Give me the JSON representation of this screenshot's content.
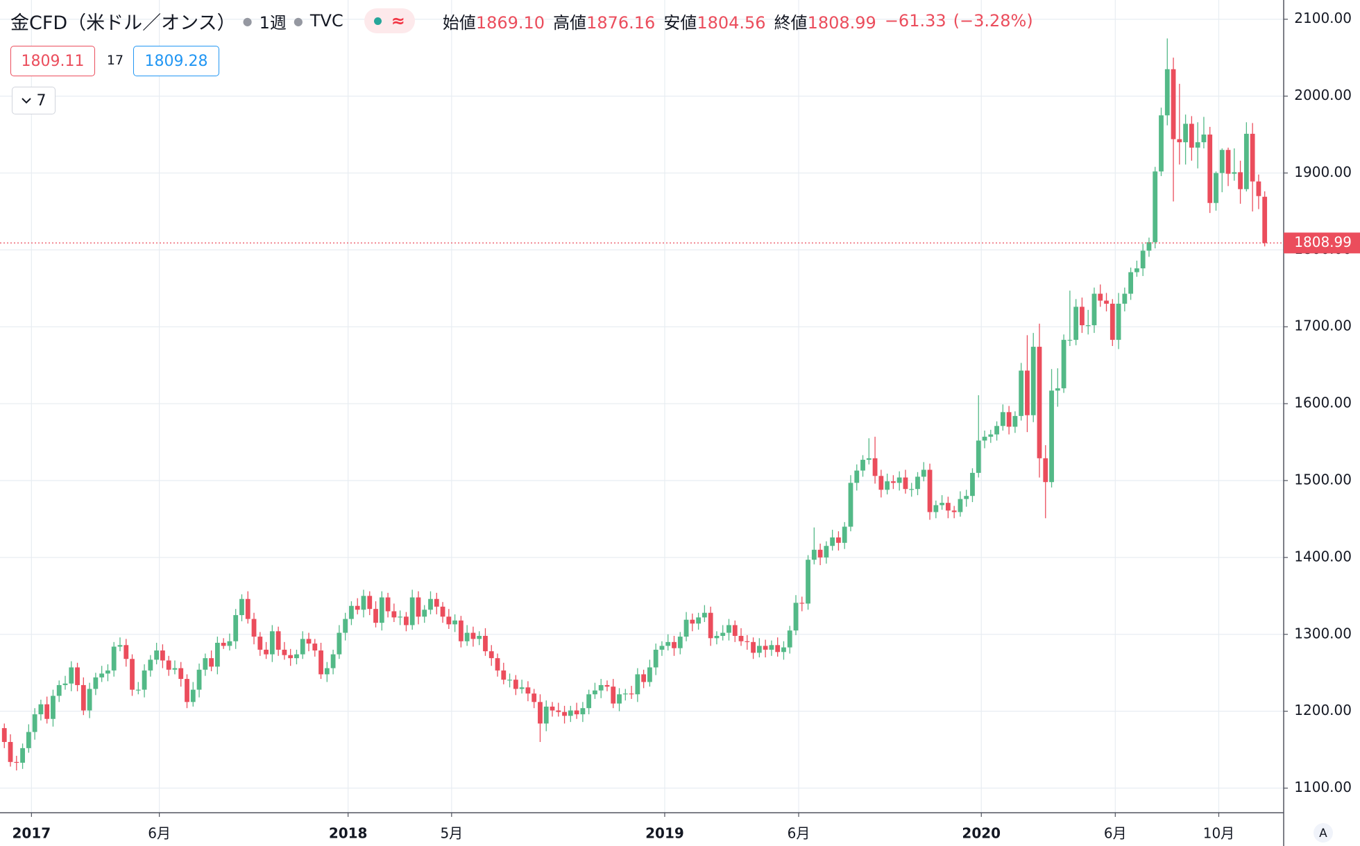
{
  "header": {
    "title": "金CFD（米ドル／オンス）",
    "interval": "1週",
    "source": "TVC",
    "status_icon": "≈",
    "ohlc": [
      {
        "label": "始値",
        "value": "1869.10"
      },
      {
        "label": "高値",
        "value": "1876.16"
      },
      {
        "label": "安値",
        "value": "1804.56"
      },
      {
        "label": "終値",
        "value": "1808.99"
      }
    ],
    "change": "−61.33",
    "change_pct": "(−3.28%)",
    "sell": "1809.11",
    "spread": "17",
    "buy": "1809.28",
    "indicators": "7",
    "axis_mode": "A"
  },
  "chart_data": {
    "type": "candlestick",
    "up_color": "#53b987",
    "down_color": "#eb4d5c",
    "grid": true,
    "ylim": [
      1068,
      2125
    ],
    "yticks": [
      {
        "value": 1100,
        "label": "1100.00"
      },
      {
        "value": 1200,
        "label": "1200.00"
      },
      {
        "value": 1300,
        "label": "1300.00"
      },
      {
        "value": 1400,
        "label": "1400.00"
      },
      {
        "value": 1500,
        "label": "1500.00"
      },
      {
        "value": 1600,
        "label": "1600.00"
      },
      {
        "value": 1700,
        "label": "1700.00"
      },
      {
        "value": 1800,
        "label": "1800.00"
      },
      {
        "value": 1900,
        "label": "1900.00"
      },
      {
        "value": 2000,
        "label": "2000.00"
      },
      {
        "value": 2100,
        "label": "2100.00"
      }
    ],
    "xticks": [
      {
        "value": 4,
        "label": "2017"
      },
      {
        "value": 25,
        "label": "6月"
      },
      {
        "value": 56,
        "label": "2018"
      },
      {
        "value": 73,
        "label": "5月"
      },
      {
        "value": 108,
        "label": "2019"
      },
      {
        "value": 130,
        "label": "6月"
      },
      {
        "value": 160,
        "label": "2020"
      },
      {
        "value": 182,
        "label": "6月"
      },
      {
        "value": 199,
        "label": "10月"
      }
    ],
    "open": [
      1178,
      1160,
      1134,
      1133,
      1152,
      1173,
      1196,
      1209,
      1190,
      1220,
      1234,
      1236,
      1257,
      1234,
      1201,
      1229,
      1244,
      1249,
      1253,
      1284,
      1286,
      1268,
      1228,
      1228,
      1253,
      1267,
      1279,
      1266,
      1254,
      1256,
      1242,
      1212,
      1228,
      1254,
      1269,
      1258,
      1289,
      1285,
      1291,
      1325,
      1346,
      1320,
      1297,
      1280,
      1274,
      1304,
      1280,
      1273,
      1269,
      1274,
      1294,
      1288,
      1279,
      1248,
      1256,
      1274,
      1302,
      1320,
      1337,
      1332,
      1350,
      1333,
      1315,
      1348,
      1330,
      1322,
      1323,
      1312,
      1348,
      1323,
      1332,
      1346,
      1336,
      1323,
      1313,
      1318,
      1291,
      1302,
      1294,
      1298,
      1278,
      1269,
      1253,
      1241,
      1241,
      1229,
      1231,
      1223,
      1212,
      1184,
      1206,
      1201,
      1199,
      1194,
      1201,
      1196,
      1204,
      1222,
      1227,
      1234,
      1232,
      1210,
      1222,
      1223,
      1222,
      1248,
      1238,
      1257,
      1280,
      1285,
      1290,
      1282,
      1297,
      1319,
      1314,
      1322,
      1328,
      1295,
      1298,
      1302,
      1312,
      1298,
      1291,
      1290,
      1276,
      1285,
      1280,
      1286,
      1277,
      1283,
      1305,
      1341,
      1340,
      1397,
      1410,
      1400,
      1415,
      1426,
      1419,
      1440,
      1497,
      1513,
      1527,
      1529,
      1506,
      1488,
      1499,
      1497,
      1504,
      1489,
      1489,
      1505,
      1514,
      1459,
      1468,
      1471,
      1461,
      1459,
      1476,
      1480,
      1510,
      1552,
      1557,
      1560,
      1571,
      1589,
      1570,
      1584,
      1643,
      1585,
      1674,
      1529,
      1498,
      1617,
      1620,
      1683,
      1683,
      1726,
      1702,
      1702,
      1743,
      1734,
      1730,
      1683,
      1730,
      1743,
      1771,
      1776,
      1799,
      1810,
      1902,
      1975,
      2035,
      1944,
      1940,
      1964,
      1933,
      1940,
      1950,
      1861,
      1900,
      1930,
      1899,
      1901,
      1879,
      1951,
      1889,
      1869.1
    ],
    "high": [
      1184,
      1170,
      1142,
      1158,
      1183,
      1204,
      1215,
      1219,
      1228,
      1240,
      1246,
      1265,
      1263,
      1244,
      1237,
      1250,
      1259,
      1261,
      1290,
      1296,
      1294,
      1274,
      1238,
      1261,
      1273,
      1289,
      1287,
      1272,
      1266,
      1264,
      1248,
      1238,
      1262,
      1275,
      1279,
      1297,
      1295,
      1301,
      1333,
      1352,
      1356,
      1328,
      1303,
      1290,
      1312,
      1310,
      1290,
      1281,
      1280,
      1304,
      1302,
      1294,
      1289,
      1264,
      1280,
      1312,
      1328,
      1343,
      1347,
      1358,
      1356,
      1343,
      1356,
      1354,
      1340,
      1331,
      1329,
      1358,
      1356,
      1338,
      1356,
      1354,
      1342,
      1333,
      1326,
      1324,
      1312,
      1310,
      1304,
      1308,
      1286,
      1275,
      1263,
      1249,
      1247,
      1241,
      1239,
      1229,
      1222,
      1214,
      1212,
      1211,
      1207,
      1207,
      1211,
      1212,
      1228,
      1237,
      1242,
      1240,
      1242,
      1230,
      1229,
      1233,
      1256,
      1254,
      1267,
      1288,
      1291,
      1300,
      1298,
      1303,
      1329,
      1327,
      1328,
      1338,
      1336,
      1304,
      1312,
      1320,
      1318,
      1308,
      1299,
      1296,
      1295,
      1293,
      1292,
      1296,
      1291,
      1311,
      1351,
      1349,
      1403,
      1439,
      1418,
      1421,
      1436,
      1434,
      1446,
      1507,
      1521,
      1533,
      1555,
      1557,
      1514,
      1509,
      1507,
      1512,
      1514,
      1497,
      1511,
      1524,
      1522,
      1474,
      1481,
      1479,
      1467,
      1486,
      1488,
      1516,
      1611,
      1565,
      1566,
      1577,
      1599,
      1597,
      1590,
      1653,
      1689,
      1692,
      1704,
      1546,
      1645,
      1646,
      1690,
      1747,
      1736,
      1738,
      1722,
      1751,
      1755,
      1744,
      1736,
      1744,
      1751,
      1777,
      1786,
      1808,
      1816,
      1908,
      1985,
      2075,
      2050,
      2016,
      1976,
      1974,
      1966,
      1973,
      1960,
      1902,
      1932,
      1933,
      1932,
      1916,
      1966,
      1965,
      1898,
      1876.16
    ],
    "low": [
      1152,
      1128,
      1123,
      1125,
      1146,
      1163,
      1188,
      1184,
      1180,
      1212,
      1228,
      1226,
      1226,
      1195,
      1191,
      1221,
      1238,
      1239,
      1245,
      1278,
      1258,
      1220,
      1222,
      1218,
      1245,
      1261,
      1256,
      1246,
      1248,
      1232,
      1204,
      1206,
      1218,
      1246,
      1252,
      1248,
      1281,
      1279,
      1281,
      1317,
      1314,
      1287,
      1272,
      1268,
      1264,
      1272,
      1267,
      1259,
      1261,
      1268,
      1278,
      1271,
      1242,
      1238,
      1248,
      1268,
      1292,
      1312,
      1326,
      1322,
      1325,
      1309,
      1305,
      1322,
      1316,
      1312,
      1304,
      1306,
      1313,
      1315,
      1326,
      1326,
      1315,
      1307,
      1303,
      1283,
      1285,
      1284,
      1286,
      1272,
      1259,
      1245,
      1235,
      1231,
      1221,
      1223,
      1213,
      1204,
      1160,
      1174,
      1193,
      1193,
      1184,
      1186,
      1190,
      1186,
      1196,
      1216,
      1217,
      1226,
      1204,
      1200,
      1214,
      1216,
      1212,
      1230,
      1232,
      1247,
      1272,
      1279,
      1272,
      1274,
      1291,
      1304,
      1306,
      1316,
      1285,
      1287,
      1292,
      1292,
      1290,
      1285,
      1280,
      1268,
      1270,
      1270,
      1272,
      1271,
      1267,
      1275,
      1299,
      1330,
      1332,
      1391,
      1390,
      1392,
      1409,
      1409,
      1411,
      1434,
      1487,
      1505,
      1521,
      1496,
      1478,
      1482,
      1489,
      1487,
      1483,
      1479,
      1481,
      1499,
      1449,
      1451,
      1462,
      1451,
      1451,
      1453,
      1466,
      1472,
      1504,
      1542,
      1549,
      1552,
      1565,
      1560,
      1562,
      1578,
      1563,
      1576,
      1504,
      1451,
      1491,
      1596,
      1614,
      1675,
      1676,
      1692,
      1690,
      1692,
      1726,
      1720,
      1675,
      1671,
      1720,
      1735,
      1765,
      1766,
      1791,
      1802,
      1896,
      1962,
      1863,
      1911,
      1911,
      1916,
      1906,
      1932,
      1848,
      1851,
      1875,
      1883,
      1890,
      1860,
      1876,
      1850,
      1853,
      1804.56
    ],
    "close": [
      1160,
      1134,
      1133,
      1152,
      1173,
      1196,
      1209,
      1190,
      1220,
      1234,
      1236,
      1257,
      1234,
      1201,
      1229,
      1244,
      1249,
      1253,
      1284,
      1286,
      1268,
      1228,
      1228,
      1253,
      1267,
      1279,
      1266,
      1254,
      1256,
      1242,
      1212,
      1228,
      1254,
      1269,
      1258,
      1289,
      1285,
      1291,
      1325,
      1346,
      1320,
      1297,
      1280,
      1274,
      1304,
      1280,
      1273,
      1269,
      1274,
      1294,
      1288,
      1279,
      1248,
      1256,
      1274,
      1302,
      1320,
      1337,
      1332,
      1350,
      1333,
      1315,
      1348,
      1330,
      1322,
      1323,
      1312,
      1348,
      1323,
      1332,
      1346,
      1336,
      1323,
      1313,
      1318,
      1291,
      1302,
      1294,
      1298,
      1278,
      1269,
      1253,
      1241,
      1241,
      1229,
      1231,
      1223,
      1212,
      1184,
      1206,
      1201,
      1199,
      1194,
      1201,
      1196,
      1204,
      1222,
      1227,
      1234,
      1232,
      1210,
      1222,
      1223,
      1222,
      1248,
      1238,
      1257,
      1280,
      1285,
      1290,
      1282,
      1297,
      1319,
      1314,
      1322,
      1328,
      1295,
      1298,
      1302,
      1312,
      1298,
      1291,
      1290,
      1276,
      1285,
      1280,
      1286,
      1277,
      1283,
      1305,
      1341,
      1340,
      1397,
      1410,
      1400,
      1415,
      1426,
      1419,
      1440,
      1497,
      1513,
      1527,
      1529,
      1506,
      1488,
      1499,
      1497,
      1504,
      1489,
      1489,
      1505,
      1514,
      1459,
      1468,
      1471,
      1461,
      1459,
      1476,
      1480,
      1510,
      1552,
      1557,
      1560,
      1571,
      1589,
      1570,
      1584,
      1643,
      1585,
      1674,
      1529,
      1498,
      1617,
      1620,
      1683,
      1683,
      1726,
      1702,
      1702,
      1743,
      1734,
      1730,
      1683,
      1730,
      1743,
      1771,
      1776,
      1799,
      1810,
      1902,
      1975,
      2035,
      1944,
      1940,
      1964,
      1933,
      1940,
      1950,
      1861,
      1900,
      1930,
      1899,
      1901,
      1879,
      1951,
      1889,
      1870,
      1808.99
    ]
  }
}
